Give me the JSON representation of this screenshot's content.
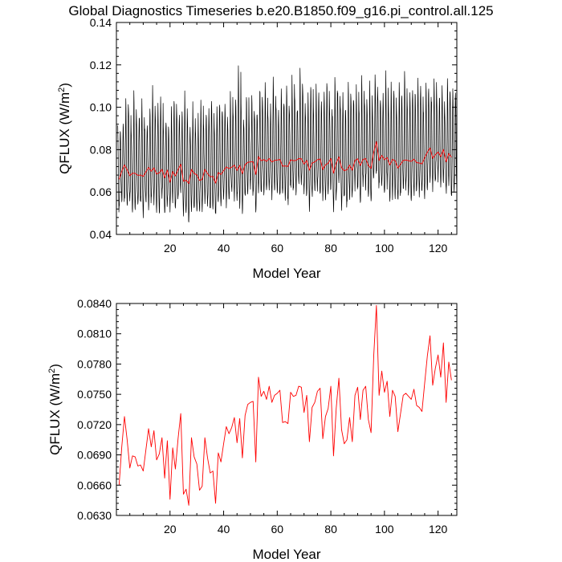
{
  "chart_data": [
    {
      "type": "line",
      "title": "Global Diagnostics Timeseries b.e20.B1850.f09_g16.pi_control.all.125",
      "xlabel": "Model Year",
      "ylabel": "QFLUX (W/m",
      "ylabel_sup": "2",
      "ylabel_close": ")",
      "xlim": [
        0,
        127
      ],
      "ylim": [
        0.04,
        0.14
      ],
      "xticks": [
        20,
        40,
        60,
        80,
        100,
        120
      ],
      "xtick_labels": [
        "20",
        "40",
        "60",
        "80",
        "100",
        "120"
      ],
      "yticks": [
        0.04,
        0.06,
        0.08,
        0.1,
        0.12,
        0.14
      ],
      "ytick_labels": [
        "0.04",
        "0.06",
        "0.08",
        "0.10",
        "0.12",
        "0.14"
      ],
      "grid": false,
      "series": [
        {
          "color": "#000000",
          "style": "monthly",
          "values_note": "monthly values oscillating roughly between 0.05 and 0.105 (peaks up to ~0.121 near year 46)",
          "x_start": 0.5,
          "x_end": 127,
          "annual_peaks": [
            0.091,
            0.088,
            0.094,
            0.105,
            0.101,
            0.089,
            0.107,
            0.094,
            0.097,
            0.102,
            0.092,
            0.09,
            0.1,
            0.108,
            0.096,
            0.101,
            0.104,
            0.093,
            0.095,
            0.088,
            0.099,
            0.105,
            0.097,
            0.094,
            0.1,
            0.108,
            0.092,
            0.09,
            0.1,
            0.089,
            0.095,
            0.104,
            0.091,
            0.097,
            0.101,
            0.105,
            0.09,
            0.098,
            0.103,
            0.096,
            0.1,
            0.094,
            0.107,
            0.099,
            0.102,
            0.121,
            0.1,
            0.094,
            0.106,
            0.092,
            0.104,
            0.099,
            0.095,
            0.11,
            0.1,
            0.109,
            0.096,
            0.102,
            0.112,
            0.1,
            0.096,
            0.106,
            0.102,
            0.108,
            0.098,
            0.114,
            0.104,
            0.1,
            0.117,
            0.108,
            0.099,
            0.104,
            0.111,
            0.097,
            0.109,
            0.104,
            0.1,
            0.106,
            0.113,
            0.101,
            0.098,
            0.115,
            0.108,
            0.102,
            0.105,
            0.099,
            0.111,
            0.107,
            0.103,
            0.109,
            0.099,
            0.113,
            0.105,
            0.101,
            0.11,
            0.099,
            0.116,
            0.108,
            0.103,
            0.105,
            0.115,
            0.1,
            0.109,
            0.107,
            0.099,
            0.112,
            0.104,
            0.117,
            0.101,
            0.106,
            0.11,
            0.104,
            0.112,
            0.108,
            0.098,
            0.111,
            0.106,
            0.104,
            0.114,
            0.102,
            0.107,
            0.109,
            0.099,
            0.112,
            0.105,
            0.111,
            0.106
          ]
        },
        {
          "color": "#ff0000",
          "style": "annual",
          "x": [
            1,
            2,
            3,
            4,
            5,
            6,
            7,
            8,
            9,
            10,
            11,
            12,
            13,
            14,
            15,
            16,
            17,
            18,
            19,
            20,
            21,
            22,
            23,
            24,
            25,
            26,
            27,
            28,
            29,
            30,
            31,
            32,
            33,
            34,
            35,
            36,
            37,
            38,
            39,
            40,
            41,
            42,
            43,
            44,
            45,
            46,
            47,
            48,
            49,
            50,
            51,
            52,
            53,
            54,
            55,
            56,
            57,
            58,
            59,
            60,
            61,
            62,
            63,
            64,
            65,
            66,
            67,
            68,
            69,
            70,
            71,
            72,
            73,
            74,
            75,
            76,
            77,
            78,
            79,
            80,
            81,
            82,
            83,
            84,
            85,
            86,
            87,
            88,
            89,
            90,
            91,
            92,
            93,
            94,
            95,
            96,
            97,
            98,
            99,
            100,
            101,
            102,
            103,
            104,
            105,
            106,
            107,
            108,
            109,
            110,
            111,
            112,
            113,
            114,
            115,
            116,
            117,
            118,
            119,
            120,
            121,
            122,
            123,
            124,
            125
          ],
          "values": [
            0.066,
            0.0698,
            0.0728,
            0.0705,
            0.0677,
            0.0689,
            0.0688,
            0.0679,
            0.068,
            0.0674,
            0.0695,
            0.0716,
            0.0698,
            0.0714,
            0.0685,
            0.0691,
            0.0707,
            0.0667,
            0.0704,
            0.0646,
            0.0697,
            0.0676,
            0.0706,
            0.0731,
            0.0651,
            0.0656,
            0.064,
            0.0707,
            0.0688,
            0.0681,
            0.0655,
            0.0659,
            0.0707,
            0.0687,
            0.0672,
            0.0674,
            0.0642,
            0.0692,
            0.0683,
            0.0701,
            0.0718,
            0.0711,
            0.0717,
            0.0727,
            0.0702,
            0.0726,
            0.0687,
            0.0729,
            0.074,
            0.0742,
            0.0743,
            0.0683,
            0.0767,
            0.0748,
            0.0753,
            0.0745,
            0.0758,
            0.0742,
            0.0749,
            0.0751,
            0.0754,
            0.0722,
            0.0723,
            0.0721,
            0.0752,
            0.0748,
            0.0749,
            0.0758,
            0.0757,
            0.0732,
            0.0749,
            0.0703,
            0.0737,
            0.0742,
            0.0753,
            0.0756,
            0.0706,
            0.0728,
            0.0736,
            0.0758,
            0.0689,
            0.0736,
            0.0766,
            0.0715,
            0.0701,
            0.0705,
            0.0727,
            0.0703,
            0.0749,
            0.0757,
            0.0725,
            0.0754,
            0.0758,
            0.0725,
            0.0712,
            0.0788,
            0.0838,
            0.0749,
            0.0773,
            0.0752,
            0.0763,
            0.0728,
            0.0754,
            0.0748,
            0.0713,
            0.0731,
            0.0749,
            0.0751,
            0.0748,
            0.0745,
            0.0755,
            0.0739,
            0.0737,
            0.0733,
            0.0761,
            0.0788,
            0.0808,
            0.0759,
            0.0776,
            0.0789,
            0.0767,
            0.0801,
            0.0742,
            0.0782,
            0.0764
          ]
        }
      ]
    },
    {
      "type": "line",
      "title": "",
      "xlabel": "Model Year",
      "ylabel": "QFLUX (W/m",
      "ylabel_sup": "2",
      "ylabel_close": ")",
      "xlim": [
        0,
        127
      ],
      "ylim": [
        0.063,
        0.084
      ],
      "xticks": [
        20,
        40,
        60,
        80,
        100,
        120
      ],
      "xtick_labels": [
        "20",
        "40",
        "60",
        "80",
        "100",
        "120"
      ],
      "yticks": [
        0.063,
        0.066,
        0.069,
        0.072,
        0.075,
        0.078,
        0.081,
        0.084
      ],
      "ytick_labels": [
        "0.0630",
        "0.0660",
        "0.0690",
        "0.0720",
        "0.0750",
        "0.0780",
        "0.0810",
        "0.0840"
      ],
      "grid": false,
      "series": [
        {
          "color": "#ff0000",
          "style": "annual",
          "x": [
            1,
            2,
            3,
            4,
            5,
            6,
            7,
            8,
            9,
            10,
            11,
            12,
            13,
            14,
            15,
            16,
            17,
            18,
            19,
            20,
            21,
            22,
            23,
            24,
            25,
            26,
            27,
            28,
            29,
            30,
            31,
            32,
            33,
            34,
            35,
            36,
            37,
            38,
            39,
            40,
            41,
            42,
            43,
            44,
            45,
            46,
            47,
            48,
            49,
            50,
            51,
            52,
            53,
            54,
            55,
            56,
            57,
            58,
            59,
            60,
            61,
            62,
            63,
            64,
            65,
            66,
            67,
            68,
            69,
            70,
            71,
            72,
            73,
            74,
            75,
            76,
            77,
            78,
            79,
            80,
            81,
            82,
            83,
            84,
            85,
            86,
            87,
            88,
            89,
            90,
            91,
            92,
            93,
            94,
            95,
            96,
            97,
            98,
            99,
            100,
            101,
            102,
            103,
            104,
            105,
            106,
            107,
            108,
            109,
            110,
            111,
            112,
            113,
            114,
            115,
            116,
            117,
            118,
            119,
            120,
            121,
            122,
            123,
            124,
            125
          ],
          "values": [
            0.066,
            0.0698,
            0.0728,
            0.0705,
            0.0677,
            0.0689,
            0.0688,
            0.0679,
            0.068,
            0.0674,
            0.0695,
            0.0716,
            0.0698,
            0.0714,
            0.0685,
            0.0691,
            0.0707,
            0.0667,
            0.0704,
            0.0646,
            0.0697,
            0.0676,
            0.0706,
            0.0731,
            0.0651,
            0.0656,
            0.064,
            0.0707,
            0.0688,
            0.0681,
            0.0655,
            0.0659,
            0.0707,
            0.0687,
            0.0672,
            0.0674,
            0.0642,
            0.0692,
            0.0683,
            0.0701,
            0.0718,
            0.0711,
            0.0717,
            0.0727,
            0.0702,
            0.0726,
            0.0687,
            0.0729,
            0.074,
            0.0742,
            0.0743,
            0.0683,
            0.0767,
            0.0748,
            0.0753,
            0.0745,
            0.0758,
            0.0742,
            0.0749,
            0.0751,
            0.0754,
            0.0722,
            0.0723,
            0.0721,
            0.0752,
            0.0748,
            0.0749,
            0.0758,
            0.0757,
            0.0732,
            0.0749,
            0.0703,
            0.0737,
            0.0742,
            0.0753,
            0.0756,
            0.0706,
            0.0728,
            0.0736,
            0.0758,
            0.0689,
            0.0736,
            0.0766,
            0.0715,
            0.0701,
            0.0705,
            0.0727,
            0.0703,
            0.0749,
            0.0757,
            0.0725,
            0.0754,
            0.0758,
            0.0725,
            0.0712,
            0.0788,
            0.0838,
            0.0749,
            0.0773,
            0.0752,
            0.0763,
            0.0728,
            0.0754,
            0.0748,
            0.0713,
            0.0731,
            0.0749,
            0.0751,
            0.0748,
            0.0745,
            0.0755,
            0.0739,
            0.0737,
            0.0733,
            0.0761,
            0.0788,
            0.0808,
            0.0759,
            0.0776,
            0.0789,
            0.0767,
            0.0801,
            0.0742,
            0.0782,
            0.0764
          ]
        }
      ]
    }
  ]
}
